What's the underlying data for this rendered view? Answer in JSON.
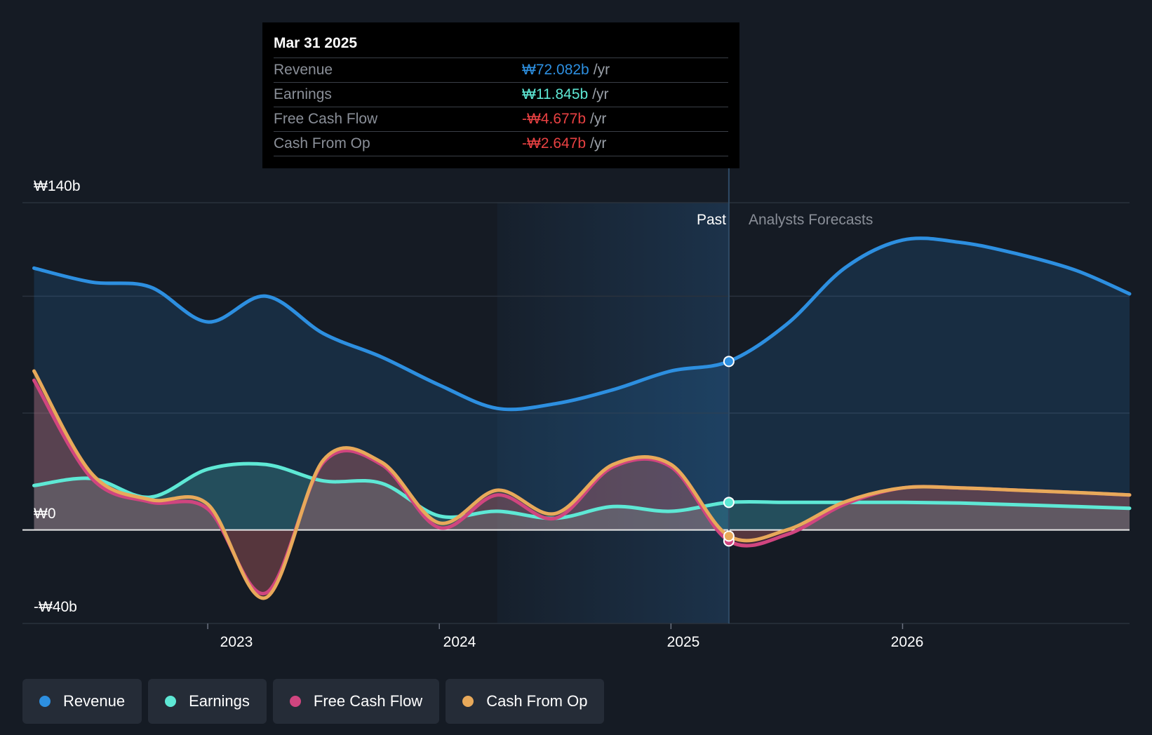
{
  "tooltip": {
    "date": "Mar 31 2025",
    "rows": [
      {
        "label": "Revenue",
        "value": "₩72.082b",
        "unit": "/yr",
        "color": "#2d8fe0"
      },
      {
        "label": "Earnings",
        "value": "₩11.845b",
        "unit": "/yr",
        "color": "#5ee8d5"
      },
      {
        "label": "Free Cash Flow",
        "value": "-₩4.677b",
        "unit": "/yr",
        "color": "#e84142"
      },
      {
        "label": "Cash From Op",
        "value": "-₩2.647b",
        "unit": "/yr",
        "color": "#e84142"
      }
    ]
  },
  "legend": [
    {
      "label": "Revenue",
      "color": "#2d8fe0"
    },
    {
      "label": "Earnings",
      "color": "#5ee8d5"
    },
    {
      "label": "Free Cash Flow",
      "color": "#d0457f"
    },
    {
      "label": "Cash From Op",
      "color": "#e8a95a"
    }
  ],
  "chart_data": {
    "type": "line",
    "title": "",
    "xlabel": "",
    "ylabel": "",
    "xlim": [
      2022.2,
      2026.98
    ],
    "ylim": [
      -40,
      140
    ],
    "y_tick_labels": [
      {
        "value": 140,
        "label": "₩140b"
      },
      {
        "value": 0,
        "label": "₩0"
      },
      {
        "value": -40,
        "label": "-₩40b"
      }
    ],
    "y_gridlines": [
      140,
      100,
      50,
      0,
      -40
    ],
    "x_ticks": [
      {
        "value": 2023,
        "label": "2023"
      },
      {
        "value": 2024,
        "label": "2024"
      },
      {
        "value": 2025,
        "label": "2025"
      },
      {
        "value": 2026,
        "label": "2026"
      }
    ],
    "highlight_start": 2024.25,
    "divider": 2025.25,
    "past_label": "Past",
    "forecast_label": "Analysts Forecasts",
    "series": [
      {
        "name": "Revenue",
        "color": "#2d8fe0",
        "marker": [
          2025.25,
          72.1
        ],
        "points": [
          [
            2022.25,
            112
          ],
          [
            2022.5,
            106
          ],
          [
            2022.75,
            104
          ],
          [
            2023.0,
            89
          ],
          [
            2023.25,
            100
          ],
          [
            2023.5,
            84
          ],
          [
            2023.75,
            74
          ],
          [
            2024.0,
            62
          ],
          [
            2024.25,
            52
          ],
          [
            2024.5,
            54
          ],
          [
            2024.75,
            60
          ],
          [
            2025.0,
            68
          ],
          [
            2025.25,
            72.1
          ],
          [
            2025.5,
            88
          ],
          [
            2025.75,
            112
          ],
          [
            2026.0,
            124
          ],
          [
            2026.25,
            123
          ],
          [
            2026.5,
            118
          ],
          [
            2026.75,
            111
          ],
          [
            2026.98,
            101
          ]
        ]
      },
      {
        "name": "Earnings",
        "color": "#5ee8d5",
        "marker": [
          2025.25,
          11.8
        ],
        "points": [
          [
            2022.25,
            19
          ],
          [
            2022.5,
            22
          ],
          [
            2022.75,
            14
          ],
          [
            2023.0,
            26
          ],
          [
            2023.25,
            28
          ],
          [
            2023.5,
            21
          ],
          [
            2023.75,
            20
          ],
          [
            2024.0,
            6
          ],
          [
            2024.25,
            8
          ],
          [
            2024.5,
            5
          ],
          [
            2024.75,
            10
          ],
          [
            2025.0,
            8
          ],
          [
            2025.25,
            11.8
          ],
          [
            2025.5,
            11.8
          ],
          [
            2025.75,
            11.8
          ],
          [
            2026.0,
            11.8
          ],
          [
            2026.25,
            11.5
          ],
          [
            2026.5,
            10.8
          ],
          [
            2026.75,
            10
          ],
          [
            2026.98,
            9.3
          ]
        ]
      },
      {
        "name": "Free Cash Flow",
        "color": "#d0457f",
        "marker": [
          2025.25,
          -4.7
        ],
        "points": [
          [
            2022.25,
            64
          ],
          [
            2022.5,
            22
          ],
          [
            2022.75,
            12
          ],
          [
            2023.0,
            9
          ],
          [
            2023.25,
            -27
          ],
          [
            2023.5,
            29
          ],
          [
            2023.75,
            28
          ],
          [
            2024.0,
            1
          ],
          [
            2024.25,
            15
          ],
          [
            2024.5,
            5
          ],
          [
            2024.75,
            27
          ],
          [
            2025.0,
            27
          ],
          [
            2025.25,
            -4.7
          ],
          [
            2025.5,
            -2
          ],
          [
            2025.75,
            11
          ],
          [
            2026.0,
            18
          ],
          [
            2026.25,
            18
          ],
          [
            2026.5,
            17
          ],
          [
            2026.75,
            16
          ],
          [
            2026.98,
            15
          ]
        ]
      },
      {
        "name": "Cash From Op",
        "color": "#e8a95a",
        "marker": [
          2025.25,
          -2.6
        ],
        "points": [
          [
            2022.25,
            68
          ],
          [
            2022.5,
            24
          ],
          [
            2022.75,
            13
          ],
          [
            2023.0,
            11
          ],
          [
            2023.25,
            -29
          ],
          [
            2023.5,
            30
          ],
          [
            2023.75,
            29
          ],
          [
            2024.0,
            3
          ],
          [
            2024.25,
            17
          ],
          [
            2024.5,
            7
          ],
          [
            2024.75,
            28
          ],
          [
            2025.0,
            28
          ],
          [
            2025.25,
            -2.6
          ],
          [
            2025.5,
            0
          ],
          [
            2025.75,
            12
          ],
          [
            2026.0,
            18
          ],
          [
            2026.25,
            18
          ],
          [
            2026.5,
            17
          ],
          [
            2026.75,
            16
          ],
          [
            2026.98,
            15
          ]
        ]
      }
    ]
  }
}
